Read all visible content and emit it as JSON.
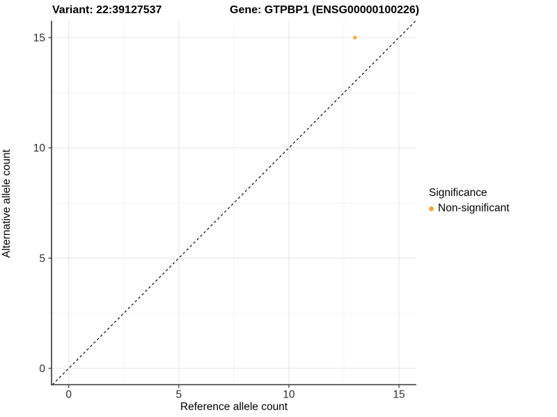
{
  "header": {
    "title_left": "Variant: 22:39127537",
    "title_right": "Gene: GTPBP1 (ENSG00000100226)"
  },
  "chart_data": {
    "type": "scatter",
    "title_left": "Variant: 22:39127537",
    "title_right": "Gene: GTPBP1 (ENSG00000100226)",
    "xlabel": "Reference allele count",
    "ylabel": "Alternative allele count",
    "xticks": [
      0,
      5,
      10,
      15
    ],
    "yticks": [
      0,
      5,
      10,
      15
    ],
    "xminor": [
      2.5,
      7.5,
      12.5
    ],
    "yminor": [
      2.5,
      7.5,
      12.5
    ],
    "xlim": [
      -0.78,
      15.79
    ],
    "ylim": [
      -0.74,
      15.76
    ],
    "grid": "major+minor on white panel",
    "points": [
      {
        "x": 13,
        "y": 15,
        "series": "Non-significant",
        "color": "#F9A43B"
      }
    ],
    "abline": {
      "slope": 1,
      "intercept": 0,
      "style": "dashed",
      "color": "#000000"
    },
    "legend": {
      "title": "Significance",
      "position": "right",
      "items": [
        {
          "label": "Non-significant",
          "color": "#F9A43B"
        }
      ]
    }
  },
  "colors": {
    "background": "#ffffff",
    "grid_major": "#e4e4e4",
    "grid_minor": "#f2f2f2",
    "axis_line": "#333333",
    "tick_text": "#2e2e2e",
    "point": "#F9A43B",
    "abline": "#000000"
  }
}
